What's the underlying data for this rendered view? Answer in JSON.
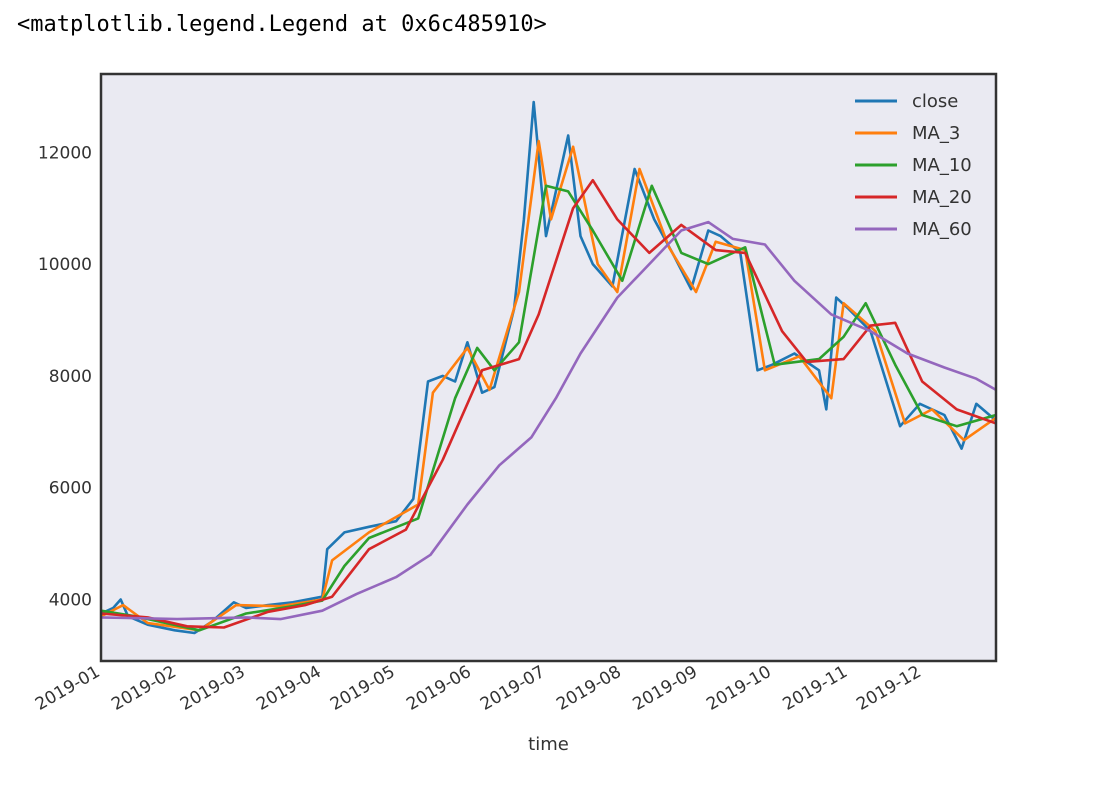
{
  "output_text": "<matplotlib.legend.Legend at 0x6c485910>",
  "chart_data": {
    "type": "line",
    "title": "",
    "xlabel": "time",
    "ylabel": "",
    "xlim": [
      "2019-01-01",
      "2019-12-31"
    ],
    "ylim": [
      2900,
      13400
    ],
    "yticks": [
      4000,
      6000,
      8000,
      10000,
      12000
    ],
    "xticks": [
      "2019-01",
      "2019-02",
      "2019-03",
      "2019-04",
      "2019-05",
      "2019-06",
      "2019-07",
      "2019-08",
      "2019-09",
      "2019-10",
      "2019-11",
      "2019-12"
    ],
    "legend_position": "top-right",
    "grid": false,
    "colors": {
      "close": "#1f77b4",
      "MA_3": "#ff7f0e",
      "MA_10": "#2ca02c",
      "MA_20": "#d62728",
      "MA_60": "#9467bd",
      "plot_background": "#eaeaf2"
    },
    "series": [
      {
        "name": "close",
        "points": [
          [
            "2019-01-01",
            3750
          ],
          [
            "2019-01-06",
            3850
          ],
          [
            "2019-01-09",
            4000
          ],
          [
            "2019-01-12",
            3700
          ],
          [
            "2019-01-20",
            3550
          ],
          [
            "2019-01-31",
            3450
          ],
          [
            "2019-02-08",
            3400
          ],
          [
            "2019-02-15",
            3600
          ],
          [
            "2019-02-24",
            3950
          ],
          [
            "2019-03-01",
            3850
          ],
          [
            "2019-03-10",
            3900
          ],
          [
            "2019-03-20",
            3950
          ],
          [
            "2019-04-01",
            4050
          ],
          [
            "2019-04-03",
            4900
          ],
          [
            "2019-04-10",
            5200
          ],
          [
            "2019-04-20",
            5300
          ],
          [
            "2019-05-01",
            5400
          ],
          [
            "2019-05-08",
            5800
          ],
          [
            "2019-05-14",
            7900
          ],
          [
            "2019-05-20",
            8000
          ],
          [
            "2019-05-25",
            7900
          ],
          [
            "2019-05-30",
            8600
          ],
          [
            "2019-06-05",
            7700
          ],
          [
            "2019-06-10",
            7800
          ],
          [
            "2019-06-18",
            9200
          ],
          [
            "2019-06-22",
            10800
          ],
          [
            "2019-06-26",
            12900
          ],
          [
            "2019-07-01",
            10500
          ],
          [
            "2019-07-10",
            12300
          ],
          [
            "2019-07-15",
            10500
          ],
          [
            "2019-07-20",
            10000
          ],
          [
            "2019-07-28",
            9600
          ],
          [
            "2019-08-06",
            11700
          ],
          [
            "2019-08-14",
            10800
          ],
          [
            "2019-08-22",
            10150
          ],
          [
            "2019-08-29",
            9550
          ],
          [
            "2019-09-05",
            10600
          ],
          [
            "2019-09-10",
            10500
          ],
          [
            "2019-09-18",
            10200
          ],
          [
            "2019-09-25",
            8100
          ],
          [
            "2019-10-01",
            8200
          ],
          [
            "2019-10-10",
            8400
          ],
          [
            "2019-10-20",
            8100
          ],
          [
            "2019-10-23",
            7400
          ],
          [
            "2019-10-27",
            9400
          ],
          [
            "2019-11-01",
            9200
          ],
          [
            "2019-11-10",
            8800
          ],
          [
            "2019-11-22",
            7100
          ],
          [
            "2019-11-30",
            7500
          ],
          [
            "2019-12-10",
            7300
          ],
          [
            "2019-12-17",
            6700
          ],
          [
            "2019-12-23",
            7500
          ],
          [
            "2019-12-31",
            7200
          ]
        ]
      },
      {
        "name": "MA_3",
        "points": [
          [
            "2019-01-01",
            3700
          ],
          [
            "2019-01-10",
            3900
          ],
          [
            "2019-01-20",
            3580
          ],
          [
            "2019-02-10",
            3450
          ],
          [
            "2019-02-25",
            3900
          ],
          [
            "2019-03-15",
            3880
          ],
          [
            "2019-04-01",
            4000
          ],
          [
            "2019-04-05",
            4700
          ],
          [
            "2019-04-20",
            5200
          ],
          [
            "2019-05-10",
            5700
          ],
          [
            "2019-05-16",
            7700
          ],
          [
            "2019-05-30",
            8500
          ],
          [
            "2019-06-08",
            7750
          ],
          [
            "2019-06-20",
            9500
          ],
          [
            "2019-06-28",
            12200
          ],
          [
            "2019-07-03",
            10800
          ],
          [
            "2019-07-12",
            12100
          ],
          [
            "2019-07-22",
            10000
          ],
          [
            "2019-07-30",
            9500
          ],
          [
            "2019-08-08",
            11700
          ],
          [
            "2019-08-20",
            10300
          ],
          [
            "2019-08-31",
            9500
          ],
          [
            "2019-09-08",
            10400
          ],
          [
            "2019-09-20",
            10250
          ],
          [
            "2019-09-28",
            8100
          ],
          [
            "2019-10-12",
            8350
          ],
          [
            "2019-10-25",
            7600
          ],
          [
            "2019-10-30",
            9300
          ],
          [
            "2019-11-12",
            8800
          ],
          [
            "2019-11-24",
            7150
          ],
          [
            "2019-12-05",
            7400
          ],
          [
            "2019-12-18",
            6850
          ],
          [
            "2019-12-31",
            7250
          ]
        ]
      },
      {
        "name": "MA_10",
        "points": [
          [
            "2019-01-01",
            3800
          ],
          [
            "2019-01-15",
            3700
          ],
          [
            "2019-02-10",
            3450
          ],
          [
            "2019-03-01",
            3750
          ],
          [
            "2019-03-20",
            3880
          ],
          [
            "2019-04-01",
            3980
          ],
          [
            "2019-04-10",
            4600
          ],
          [
            "2019-04-20",
            5100
          ],
          [
            "2019-05-10",
            5450
          ],
          [
            "2019-05-25",
            7600
          ],
          [
            "2019-06-03",
            8500
          ],
          [
            "2019-06-10",
            8100
          ],
          [
            "2019-06-20",
            8600
          ],
          [
            "2019-07-01",
            11400
          ],
          [
            "2019-07-10",
            11300
          ],
          [
            "2019-07-20",
            10600
          ],
          [
            "2019-08-01",
            9700
          ],
          [
            "2019-08-13",
            11400
          ],
          [
            "2019-08-25",
            10200
          ],
          [
            "2019-09-05",
            10000
          ],
          [
            "2019-09-20",
            10300
          ],
          [
            "2019-10-02",
            8200
          ],
          [
            "2019-10-20",
            8300
          ],
          [
            "2019-10-30",
            8700
          ],
          [
            "2019-11-08",
            9300
          ],
          [
            "2019-11-20",
            8200
          ],
          [
            "2019-12-01",
            7300
          ],
          [
            "2019-12-15",
            7100
          ],
          [
            "2019-12-31",
            7300
          ]
        ]
      },
      {
        "name": "MA_20",
        "points": [
          [
            "2019-01-01",
            3750
          ],
          [
            "2019-01-20",
            3680
          ],
          [
            "2019-02-05",
            3520
          ],
          [
            "2019-02-20",
            3500
          ],
          [
            "2019-03-10",
            3780
          ],
          [
            "2019-03-25",
            3900
          ],
          [
            "2019-04-05",
            4050
          ],
          [
            "2019-04-20",
            4900
          ],
          [
            "2019-05-05",
            5250
          ],
          [
            "2019-05-20",
            6500
          ],
          [
            "2019-06-05",
            8100
          ],
          [
            "2019-06-20",
            8300
          ],
          [
            "2019-06-28",
            9100
          ],
          [
            "2019-07-12",
            11000
          ],
          [
            "2019-07-20",
            11500
          ],
          [
            "2019-07-30",
            10800
          ],
          [
            "2019-08-12",
            10200
          ],
          [
            "2019-08-25",
            10700
          ],
          [
            "2019-09-08",
            10250
          ],
          [
            "2019-09-20",
            10200
          ],
          [
            "2019-10-05",
            8800
          ],
          [
            "2019-10-15",
            8250
          ],
          [
            "2019-10-30",
            8300
          ],
          [
            "2019-11-10",
            8900
          ],
          [
            "2019-11-20",
            8950
          ],
          [
            "2019-12-01",
            7900
          ],
          [
            "2019-12-15",
            7400
          ],
          [
            "2019-12-31",
            7150
          ]
        ]
      },
      {
        "name": "MA_60",
        "points": [
          [
            "2019-01-01",
            3680
          ],
          [
            "2019-02-01",
            3650
          ],
          [
            "2019-03-01",
            3680
          ],
          [
            "2019-03-15",
            3650
          ],
          [
            "2019-04-01",
            3800
          ],
          [
            "2019-04-15",
            4100
          ],
          [
            "2019-05-01",
            4400
          ],
          [
            "2019-05-15",
            4800
          ],
          [
            "2019-05-30",
            5700
          ],
          [
            "2019-06-12",
            6400
          ],
          [
            "2019-06-25",
            6900
          ],
          [
            "2019-07-05",
            7600
          ],
          [
            "2019-07-15",
            8400
          ],
          [
            "2019-07-30",
            9400
          ],
          [
            "2019-08-12",
            10000
          ],
          [
            "2019-08-25",
            10600
          ],
          [
            "2019-09-05",
            10750
          ],
          [
            "2019-09-15",
            10450
          ],
          [
            "2019-09-28",
            10350
          ],
          [
            "2019-10-10",
            9700
          ],
          [
            "2019-10-25",
            9100
          ],
          [
            "2019-11-10",
            8800
          ],
          [
            "2019-11-25",
            8400
          ],
          [
            "2019-12-10",
            8150
          ],
          [
            "2019-12-23",
            7950
          ],
          [
            "2019-12-31",
            7750
          ]
        ]
      }
    ]
  }
}
